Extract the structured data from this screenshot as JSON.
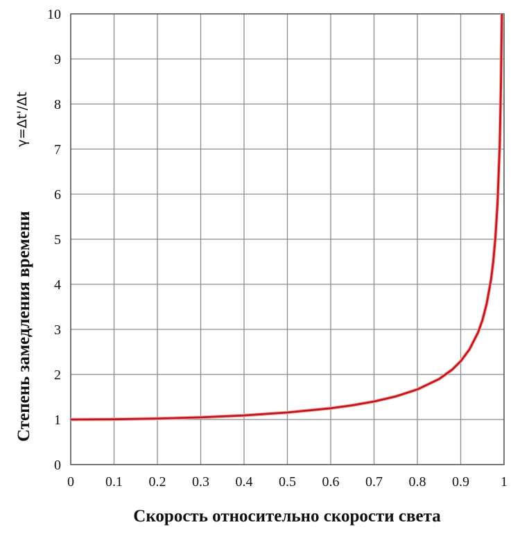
{
  "chart_data": {
    "type": "line",
    "title": "",
    "xlabel": "Скорость относительно скорости света",
    "ylabel": "Степень замедления времени",
    "ylabel_formula": "γ=Δt'/Δt",
    "xlim": [
      0,
      1
    ],
    "ylim": [
      0,
      10
    ],
    "grid": true,
    "x_ticks": [
      "0",
      "0.1",
      "0.2",
      "0.3",
      "0.4",
      "0.5",
      "0.6",
      "0.7",
      "0.8",
      "0.9",
      "1"
    ],
    "y_ticks": [
      "0",
      "1",
      "2",
      "3",
      "4",
      "5",
      "6",
      "7",
      "8",
      "9",
      "10"
    ],
    "series": [
      {
        "color": "#c0161c",
        "x": [
          0,
          0.1,
          0.2,
          0.3,
          0.4,
          0.5,
          0.6,
          0.65,
          0.7,
          0.75,
          0.8,
          0.85,
          0.88,
          0.9,
          0.92,
          0.94,
          0.95,
          0.96,
          0.97,
          0.975,
          0.98,
          0.985,
          0.99,
          0.993,
          0.995
        ],
        "y": [
          1,
          1.005,
          1.021,
          1.048,
          1.091,
          1.155,
          1.25,
          1.316,
          1.4,
          1.512,
          1.667,
          1.898,
          2.105,
          2.294,
          2.552,
          2.931,
          3.203,
          3.571,
          4.113,
          4.5,
          5.025,
          5.795,
          7.089,
          8.467,
          10.01
        ]
      }
    ]
  }
}
